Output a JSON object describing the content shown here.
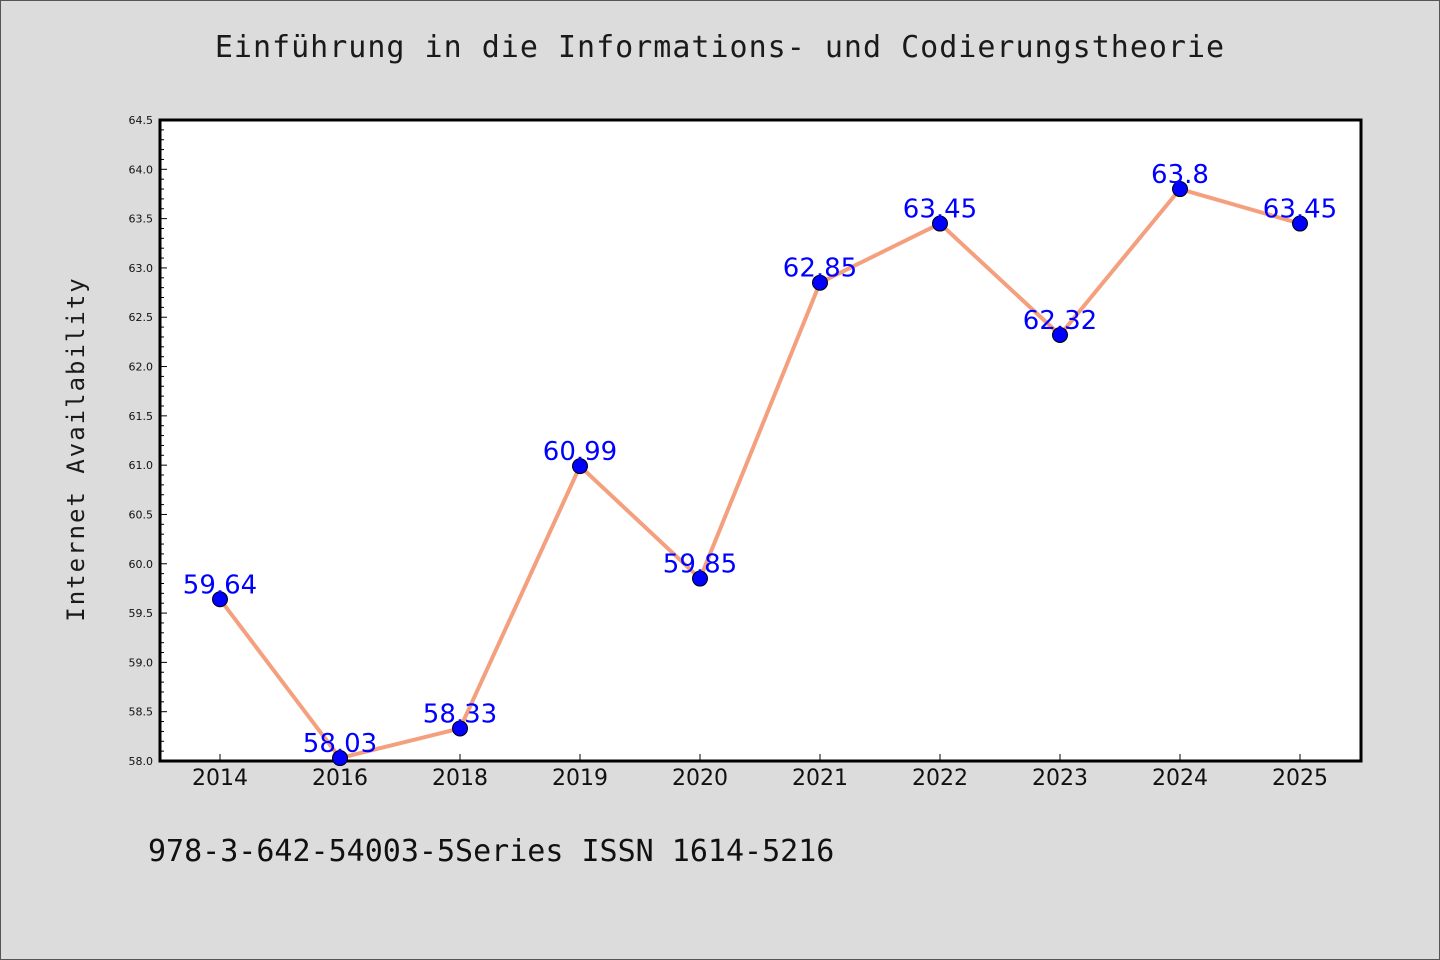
{
  "chart_data": {
    "type": "line",
    "title": "Einführung in die Informations- und Codierungstheorie",
    "xlabel": "",
    "ylabel": "Internet Availability",
    "categories": [
      "2014",
      "2016",
      "2018",
      "2019",
      "2020",
      "2021",
      "2022",
      "2023",
      "2024",
      "2025"
    ],
    "series": [
      {
        "values": [
          59.64,
          58.03,
          58.33,
          60.99,
          59.85,
          62.85,
          63.45,
          62.32,
          63.8,
          63.45
        ]
      }
    ],
    "data_labels": [
      "59.64",
      "58.03",
      "58.33",
      "60.99",
      "59.85",
      "62.85",
      "63.45",
      "62.32",
      "63.8",
      "63.45"
    ],
    "ylim": [
      58.0,
      64.5
    ],
    "yticks": [
      "58.0",
      "58.5",
      "59.0",
      "59.5",
      "60.0",
      "60.5",
      "61.0",
      "61.5",
      "62.0",
      "62.5",
      "63.0",
      "63.5",
      "64.0",
      "64.5"
    ],
    "grid": false,
    "legend": "none",
    "colors": {
      "line": "#f4a07e",
      "marker": "#0000ff",
      "label": "#0000ff",
      "background": "#dcdcdc",
      "plot_background": "#ffffff"
    }
  },
  "footer": {
    "text": "978-3-642-54003-5Series ISSN 1614-5216"
  }
}
